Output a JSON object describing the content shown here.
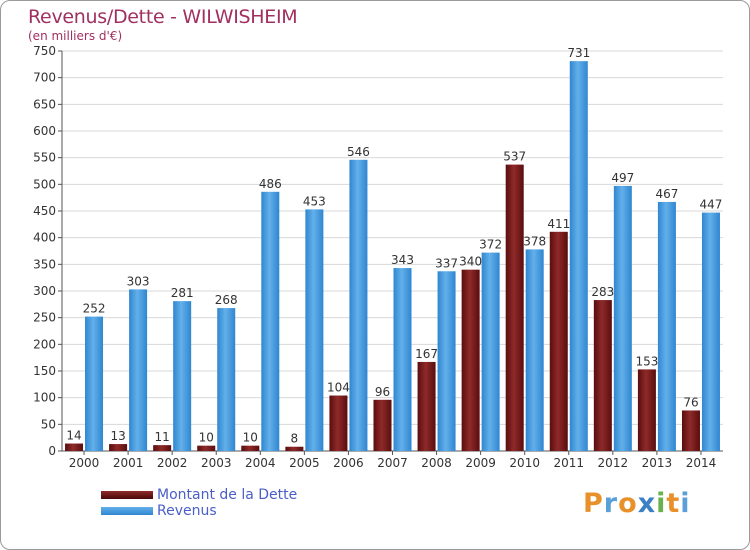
{
  "chart_data": {
    "type": "bar",
    "title": "Revenus/Dette - WILWISHEIM",
    "subtitle": "(en milliers d'€)",
    "categories": [
      "2000",
      "2001",
      "2002",
      "2003",
      "2004",
      "2005",
      "2006",
      "2007",
      "2008",
      "2009",
      "2010",
      "2011",
      "2012",
      "2013",
      "2014"
    ],
    "series": [
      {
        "name": "Montant de la Dette",
        "color": "#7a1616",
        "values": [
          14,
          13,
          11,
          10,
          10,
          8,
          104,
          96,
          167,
          340,
          537,
          411,
          283,
          153,
          76
        ]
      },
      {
        "name": "Revenus",
        "color": "#4a9fe0",
        "values": [
          252,
          303,
          281,
          268,
          486,
          453,
          546,
          343,
          337,
          372,
          378,
          731,
          497,
          467,
          447
        ]
      }
    ],
    "yticks": [
      0,
      50,
      100,
      150,
      200,
      250,
      300,
      350,
      400,
      450,
      500,
      550,
      600,
      650,
      700,
      750
    ],
    "ylim": [
      0,
      750
    ],
    "grid": true,
    "legend_position": "bottom-left"
  },
  "logo": {
    "letters": [
      "P",
      "r",
      "o",
      "x",
      "i",
      "t",
      "i"
    ],
    "colors": [
      "#e8912a",
      "#5aa0d8",
      "#e8912a",
      "#3d7fc4",
      "#6ab04c",
      "#e8912a",
      "#5aa0d8"
    ]
  }
}
